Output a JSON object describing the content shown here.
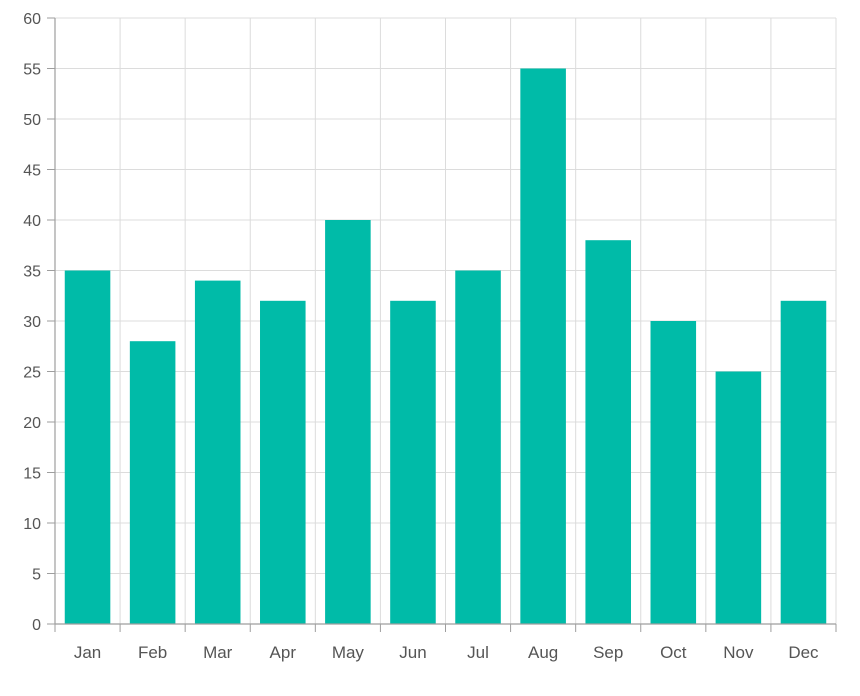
{
  "chart_data": {
    "type": "bar",
    "categories": [
      "Jan",
      "Feb",
      "Mar",
      "Apr",
      "May",
      "Jun",
      "Jul",
      "Aug",
      "Sep",
      "Oct",
      "Nov",
      "Dec"
    ],
    "series": [
      {
        "values": [
          35,
          28,
          34,
          32,
          40,
          32,
          35,
          55,
          38,
          30,
          25,
          32
        ],
        "color": "#00BBA8"
      }
    ],
    "title": "",
    "xlabel": "",
    "ylabel": "",
    "ylim": [
      0,
      60
    ],
    "yticks": [
      0,
      5,
      10,
      15,
      20,
      25,
      30,
      35,
      40,
      45,
      50,
      55,
      60
    ],
    "grid": true,
    "legend": "none",
    "colors": {
      "bar": "#00BBA8",
      "grid": "#dcdcdc",
      "axis": "#9e9e9e",
      "tick_label": "#555555"
    }
  }
}
